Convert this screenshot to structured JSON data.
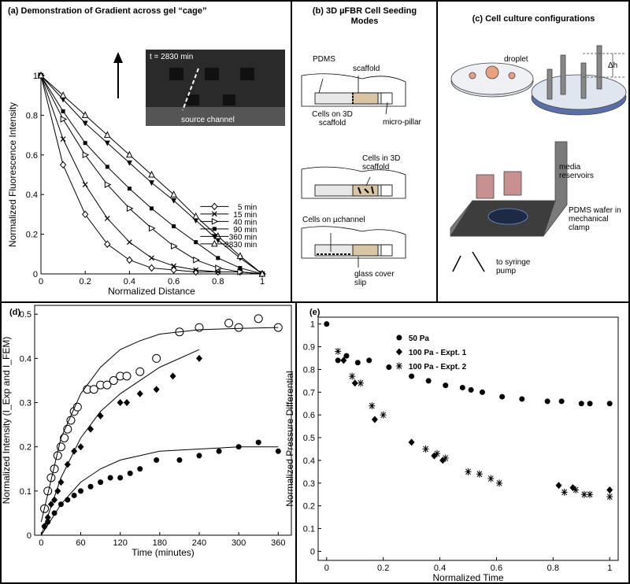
{
  "chart_data": [
    {
      "type": "line",
      "title": "(a) Demonstration of Gradient across gel “cage”",
      "x_label": "Normalized Distance",
      "y_label": "Normalized Fluorescence Intensity",
      "annotations": [
        "t = 2830 min",
        "source channel"
      ],
      "xlim": [
        0,
        1
      ],
      "ylim": [
        0,
        1
      ],
      "xticks": [
        0,
        0.2,
        0.4,
        0.6,
        0.8,
        1
      ],
      "yticks": [
        0,
        0.2,
        0.4,
        0.6,
        0.8,
        1
      ],
      "legend": "right",
      "x": [
        0,
        0.1,
        0.2,
        0.3,
        0.4,
        0.5,
        0.6,
        0.7,
        0.8,
        0.9,
        1
      ],
      "series": [
        {
          "name": "5 min",
          "color": "#000000",
          "marker": "open-diamond",
          "mode": "lines+markers",
          "values": [
            1,
            0.55,
            0.3,
            0.15,
            0.07,
            0.03,
            0.02,
            0.01,
            0.01,
            0.01,
            0
          ]
        },
        {
          "name": "15 min",
          "color": "#000000",
          "marker": "cross",
          "mode": "lines+markers",
          "values": [
            1,
            0.68,
            0.45,
            0.28,
            0.16,
            0.08,
            0.04,
            0.02,
            0.01,
            0.01,
            0
          ]
        },
        {
          "name": "40 min",
          "color": "#000000",
          "marker": "triangle-right",
          "mode": "lines+markers",
          "values": [
            1,
            0.78,
            0.6,
            0.45,
            0.33,
            0.23,
            0.14,
            0.07,
            0.03,
            0.01,
            0
          ]
        },
        {
          "name": "90 min",
          "color": "#000000",
          "marker": "square",
          "mode": "lines+markers",
          "values": [
            1,
            0.82,
            0.66,
            0.54,
            0.43,
            0.33,
            0.24,
            0.16,
            0.08,
            0.03,
            0
          ]
        },
        {
          "name": "360 min",
          "color": "#000000",
          "marker": "triangle-down",
          "mode": "lines+markers",
          "values": [
            1,
            0.88,
            0.76,
            0.66,
            0.56,
            0.46,
            0.37,
            0.27,
            0.17,
            0.08,
            0
          ]
        },
        {
          "name": "2830 min",
          "color": "#000000",
          "marker": "triangle-up",
          "mode": "lines+markers",
          "values": [
            1,
            0.9,
            0.8,
            0.7,
            0.6,
            0.5,
            0.4,
            0.29,
            0.19,
            0.09,
            0
          ]
        }
      ]
    },
    {
      "type": "scatter",
      "title": "(d)",
      "x_label": "Time (minutes)",
      "y_label": "Normalized Intensity (I_Exp and I_FEM)",
      "xlim": [
        -10,
        380
      ],
      "ylim": [
        0,
        0.52
      ],
      "xticks": [
        0,
        60,
        120,
        180,
        240,
        300,
        360
      ],
      "yticks": [
        0,
        0.1,
        0.2,
        0.3,
        0.4,
        0.5
      ],
      "series": [
        {
          "color": "#000000",
          "marker": "open-circle",
          "mode": "markers",
          "x": [
            5,
            10,
            15,
            20,
            25,
            30,
            35,
            40,
            45,
            50,
            55,
            70,
            80,
            90,
            100,
            110,
            120,
            130,
            150,
            175,
            210,
            240,
            285,
            300,
            330,
            360
          ],
          "values": [
            0.06,
            0.1,
            0.13,
            0.15,
            0.18,
            0.2,
            0.22,
            0.24,
            0.26,
            0.28,
            0.29,
            0.33,
            0.33,
            0.34,
            0.34,
            0.35,
            0.36,
            0.36,
            0.37,
            0.4,
            0.46,
            0.47,
            0.48,
            0.47,
            0.49,
            0.47
          ]
        },
        {
          "color": "#000000",
          "marker": "diamond",
          "mode": "markers",
          "x": [
            5,
            10,
            15,
            20,
            25,
            30,
            40,
            50,
            60,
            75,
            90,
            120,
            130,
            150,
            175,
            200,
            240
          ],
          "values": [
            0.02,
            0.04,
            0.07,
            0.08,
            0.1,
            0.12,
            0.16,
            0.19,
            0.2,
            0.24,
            0.27,
            0.3,
            0.3,
            0.32,
            0.33,
            0.36,
            0.4
          ]
        },
        {
          "color": "#000000",
          "marker": "circle",
          "mode": "markers",
          "x": [
            5,
            10,
            20,
            30,
            40,
            50,
            60,
            75,
            90,
            105,
            120,
            135,
            150,
            175,
            210,
            240,
            270,
            300,
            330,
            360
          ],
          "values": [
            0.02,
            0.03,
            0.05,
            0.07,
            0.08,
            0.09,
            0.1,
            0.11,
            0.12,
            0.13,
            0.13,
            0.14,
            0.15,
            0.17,
            0.17,
            0.18,
            0.19,
            0.2,
            0.21,
            0.19
          ]
        },
        {
          "color": "#000000",
          "mode": "lines",
          "x": [
            0,
            30,
            60,
            90,
            120,
            150,
            180,
            240,
            300,
            360
          ],
          "values": [
            0.03,
            0.22,
            0.32,
            0.38,
            0.42,
            0.44,
            0.455,
            0.465,
            0.468,
            0.47
          ]
        },
        {
          "color": "#000000",
          "mode": "lines",
          "x": [
            0,
            30,
            60,
            90,
            120,
            150,
            180,
            240
          ],
          "values": [
            0,
            0.13,
            0.22,
            0.28,
            0.32,
            0.35,
            0.38,
            0.42
          ]
        },
        {
          "color": "#000000",
          "mode": "lines",
          "x": [
            0,
            30,
            60,
            90,
            120,
            150,
            180,
            240,
            300,
            360
          ],
          "values": [
            0,
            0.07,
            0.12,
            0.15,
            0.17,
            0.18,
            0.19,
            0.195,
            0.2,
            0.2
          ]
        }
      ]
    },
    {
      "type": "scatter",
      "title": "(e)",
      "x_label": "Normalized Time",
      "y_label": "Normalized Pressure Differential",
      "xlim": [
        -0.03,
        1.03
      ],
      "ylim": [
        -0.04,
        1.03
      ],
      "xticks": [
        0,
        0.2,
        0.4,
        0.6,
        0.8,
        1
      ],
      "yticks": [
        0,
        0.1,
        0.2,
        0.3,
        0.4,
        0.5,
        0.6,
        0.7,
        0.8,
        0.9,
        1
      ],
      "legend": "top",
      "series": [
        {
          "name": "50 Pa",
          "color": "#000000",
          "marker": "circle",
          "mode": "markers",
          "x": [
            0,
            0.04,
            0.07,
            0.11,
            0.15,
            0.22,
            0.3,
            0.36,
            0.42,
            0.48,
            0.51,
            0.55,
            0.62,
            0.69,
            0.78,
            0.83,
            0.9,
            0.93,
            1
          ],
          "values": [
            1,
            0.84,
            0.86,
            0.83,
            0.84,
            0.81,
            0.77,
            0.75,
            0.73,
            0.72,
            0.71,
            0.7,
            0.68,
            0.67,
            0.66,
            0.66,
            0.65,
            0.65,
            0.65
          ]
        },
        {
          "name": "100 Pa - Expt. 1",
          "color": "#000000",
          "marker": "diamond",
          "mode": "markers",
          "x": [
            0.06,
            0.1,
            0.17,
            0.3,
            0.38,
            0.41,
            0.82,
            0.87,
            1
          ],
          "values": [
            0.84,
            0.74,
            0.58,
            0.48,
            0.42,
            0.4,
            0.29,
            0.28,
            0.27
          ]
        },
        {
          "name": "100 Pa - Expt. 2",
          "color": "#000000",
          "marker": "asterisk",
          "mode": "markers",
          "x": [
            0.04,
            0.09,
            0.12,
            0.16,
            0.2,
            0.35,
            0.39,
            0.42,
            0.5,
            0.54,
            0.58,
            0.61,
            0.84,
            0.88,
            0.91,
            0.93,
            1
          ],
          "values": [
            0.88,
            0.77,
            0.74,
            0.64,
            0.6,
            0.45,
            0.43,
            0.41,
            0.35,
            0.34,
            0.32,
            0.3,
            0.26,
            0.27,
            0.25,
            0.25,
            0.24
          ]
        }
      ]
    }
  ],
  "panels": {
    "b": {
      "title": "(b) 3D µFBR Cell Seeding Modes",
      "labels": [
        "PDMS",
        "scaffold",
        "Cells on 3D scaffold",
        "micro-pillar",
        "Cells in 3D scaffold",
        "Cells on µchannel",
        "glass cover slip"
      ]
    },
    "c": {
      "title": "(c) Cell culture configurations",
      "labels": [
        "droplet",
        "Δh",
        "media reservoirs",
        "PDMS wafer in mechanical clamp",
        "to syringe pump"
      ]
    }
  }
}
